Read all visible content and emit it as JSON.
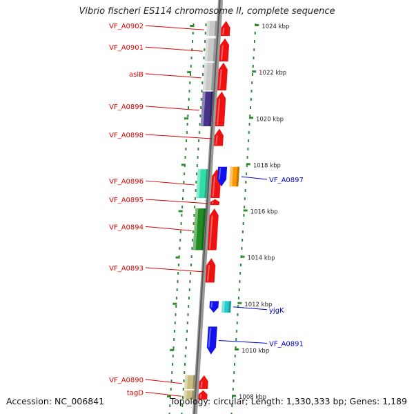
{
  "title": "Vibrio fischeri ES114 chromosome II, complete sequence",
  "footer": {
    "accession": "Accession: NC_006841",
    "summary": "Topology: circular; Length: 1,330,333 bp; Genes: 1,189"
  },
  "colors": {
    "backbone": "#888888",
    "tick_green": "#2e8b2e",
    "label_red": "#dd0000",
    "label_blue": "#0000cc"
  },
  "scale": {
    "unit": "kbp",
    "ticks": [
      {
        "kbp": 1024,
        "label": "1024 kbp"
      },
      {
        "kbp": 1022,
        "label": "1022 kbp"
      },
      {
        "kbp": 1020,
        "label": "1020 kbp"
      },
      {
        "kbp": 1018,
        "label": "1018 kbp"
      },
      {
        "kbp": 1016,
        "label": "1016 kbp"
      },
      {
        "kbp": 1014,
        "label": "1014 kbp"
      },
      {
        "kbp": 1012,
        "label": "1012 kbp"
      },
      {
        "kbp": 1010,
        "label": "1010 kbp"
      },
      {
        "kbp": 1008,
        "label": "1008 kbp"
      }
    ]
  },
  "features": {
    "reverse_strand": [
      {
        "label": "VF_A0902",
        "start_kbp": 1023.55,
        "end_kbp": 1024.2,
        "gene_color": "#ee1111",
        "ring_color": "#c8c8c8"
      },
      {
        "label": "VF_A0901",
        "start_kbp": 1022.45,
        "end_kbp": 1023.45,
        "gene_color": "#ee1111",
        "ring_color": "#c8c8c8"
      },
      {
        "label": "aslB",
        "start_kbp": 1021.2,
        "end_kbp": 1022.4,
        "gene_color": "#ee1111",
        "ring_color": "#c8c8c8"
      },
      {
        "label": "VF_A0899",
        "start_kbp": 1019.65,
        "end_kbp": 1021.15,
        "gene_color": "#ee1111",
        "ring_color": "#443388"
      },
      {
        "label": "VF_A0898",
        "start_kbp": 1018.8,
        "end_kbp": 1019.55,
        "gene_color": "#ee1111",
        "ring_color": ""
      },
      {
        "label": "VF_A0896",
        "start_kbp": 1016.55,
        "end_kbp": 1017.8,
        "gene_color": "#ee1111",
        "ring_color": "#33ddaa"
      },
      {
        "label": "VF_A0895",
        "start_kbp": 1016.25,
        "end_kbp": 1016.5,
        "gene_color": "#ee1111",
        "ring_color": ""
      },
      {
        "label": "VF_A0894",
        "start_kbp": 1014.3,
        "end_kbp": 1016.1,
        "gene_color": "#ee1111",
        "ring_color": "#228b22"
      },
      {
        "label": "VF_A0893",
        "start_kbp": 1012.9,
        "end_kbp": 1013.95,
        "gene_color": "#ee1111",
        "ring_color": ""
      },
      {
        "label": "VF_A0890",
        "start_kbp": 1008.3,
        "end_kbp": 1008.9,
        "gene_color": "#ee1111",
        "ring_color": "#c8bc80"
      },
      {
        "label": "tagD",
        "start_kbp": 1007.85,
        "end_kbp": 1008.25,
        "gene_color": "#ee1111",
        "ring_color": "#c8bc80"
      }
    ],
    "forward_strand": [
      {
        "label": "VF_A0897",
        "start_kbp": 1017.05,
        "end_kbp": 1017.9,
        "gene_color": "#1111ee",
        "ring_color": "#ff9900"
      },
      {
        "label": "yjgK",
        "start_kbp": 1011.6,
        "end_kbp": 1012.1,
        "gene_color": "#1111ee",
        "ring_color": "#22cccc"
      },
      {
        "label": "VF_A0891",
        "start_kbp": 1009.8,
        "end_kbp": 1011.0,
        "gene_color": "#1111ee",
        "ring_color": ""
      }
    ]
  }
}
